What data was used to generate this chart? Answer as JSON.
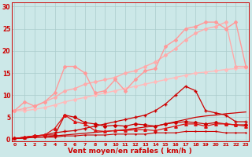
{
  "background_color": "#cce8e8",
  "grid_color": "#aacccc",
  "xlabel": "Vent moyen/en rafales ( km/h )",
  "xlabel_color": "#cc0000",
  "tick_color": "#cc0000",
  "x_values": [
    0,
    1,
    2,
    3,
    4,
    5,
    6,
    7,
    8,
    9,
    10,
    11,
    12,
    13,
    14,
    15,
    16,
    17,
    18,
    19,
    20,
    21,
    22,
    23
  ],
  "ylim": [
    -0.5,
    31
  ],
  "xlim": [
    -0.3,
    23.3
  ],
  "yticks": [
    0,
    5,
    10,
    15,
    20,
    25,
    30
  ],
  "series": [
    {
      "y": [
        6.5,
        6.5,
        6.8,
        7.2,
        7.8,
        8.5,
        9.0,
        9.5,
        10.0,
        10.5,
        11.0,
        11.5,
        12.0,
        12.5,
        13.0,
        13.5,
        14.0,
        14.5,
        15.0,
        15.2,
        15.5,
        15.8,
        16.0,
        16.2
      ],
      "color": "#ffbbbb",
      "linewidth": 1.0,
      "marker": "D",
      "markersize": 2.0,
      "zorder": 2
    },
    {
      "y": [
        6.5,
        7.0,
        7.5,
        8.5,
        9.5,
        11.0,
        11.5,
        12.5,
        13.0,
        13.5,
        14.0,
        15.0,
        15.5,
        16.5,
        17.5,
        19.0,
        20.5,
        22.5,
        24.0,
        25.0,
        25.5,
        26.5,
        16.5,
        16.5
      ],
      "color": "#ffaaaa",
      "linewidth": 1.0,
      "marker": "D",
      "markersize": 2.0,
      "zorder": 2
    },
    {
      "y": [
        6.5,
        8.5,
        7.5,
        8.5,
        10.5,
        16.5,
        16.5,
        15.0,
        10.5,
        11.0,
        13.5,
        11.0,
        13.5,
        15.5,
        16.0,
        21.0,
        22.5,
        25.0,
        25.5,
        26.5,
        26.5,
        25.0,
        26.5,
        16.5
      ],
      "color": "#ff9999",
      "linewidth": 1.0,
      "marker": "D",
      "markersize": 2.0,
      "zorder": 3
    },
    {
      "y": [
        0.2,
        0.3,
        0.5,
        0.6,
        0.8,
        1.0,
        1.2,
        1.4,
        1.6,
        1.8,
        2.0,
        2.2,
        2.5,
        2.8,
        3.0,
        3.5,
        4.0,
        4.5,
        5.0,
        5.3,
        5.5,
        5.8,
        6.0,
        6.2
      ],
      "color": "#cc0000",
      "linewidth": 0.9,
      "marker": null,
      "markersize": 0,
      "zorder": 4
    },
    {
      "y": [
        0.2,
        0.5,
        0.8,
        1.0,
        1.5,
        1.8,
        2.0,
        2.5,
        3.0,
        3.5,
        4.0,
        4.5,
        5.0,
        5.5,
        6.5,
        8.0,
        10.0,
        12.0,
        11.0,
        6.5,
        6.0,
        5.5,
        4.0,
        4.0
      ],
      "color": "#cc0000",
      "linewidth": 0.9,
      "marker": "+",
      "markersize": 3.0,
      "zorder": 5
    },
    {
      "y": [
        0.2,
        0.5,
        0.8,
        1.0,
        1.0,
        5.5,
        5.0,
        3.8,
        3.5,
        3.0,
        3.2,
        3.0,
        3.5,
        3.3,
        3.0,
        3.5,
        3.8,
        4.0,
        3.8,
        3.5,
        3.8,
        3.5,
        3.3,
        3.3
      ],
      "color": "#cc0000",
      "linewidth": 0.9,
      "marker": "D",
      "markersize": 2.0,
      "zorder": 5
    },
    {
      "y": [
        0.2,
        0.5,
        0.8,
        1.0,
        2.5,
        5.5,
        4.0,
        3.5,
        2.0,
        1.8,
        2.0,
        2.0,
        2.2,
        2.2,
        2.0,
        2.5,
        3.0,
        3.5,
        3.5,
        3.0,
        3.5,
        3.5,
        3.3,
        3.0
      ],
      "color": "#dd1111",
      "linewidth": 0.9,
      "marker": "^",
      "markersize": 2.5,
      "zorder": 6
    },
    {
      "y": [
        0.2,
        0.3,
        0.5,
        0.5,
        0.5,
        0.8,
        0.8,
        1.0,
        1.0,
        1.0,
        1.2,
        1.2,
        1.2,
        1.2,
        1.5,
        1.5,
        1.5,
        1.8,
        1.8,
        1.8,
        1.8,
        1.5,
        1.5,
        1.5
      ],
      "color": "#cc0000",
      "linewidth": 0.8,
      "marker": "+",
      "markersize": 2.0,
      "zorder": 6
    }
  ]
}
